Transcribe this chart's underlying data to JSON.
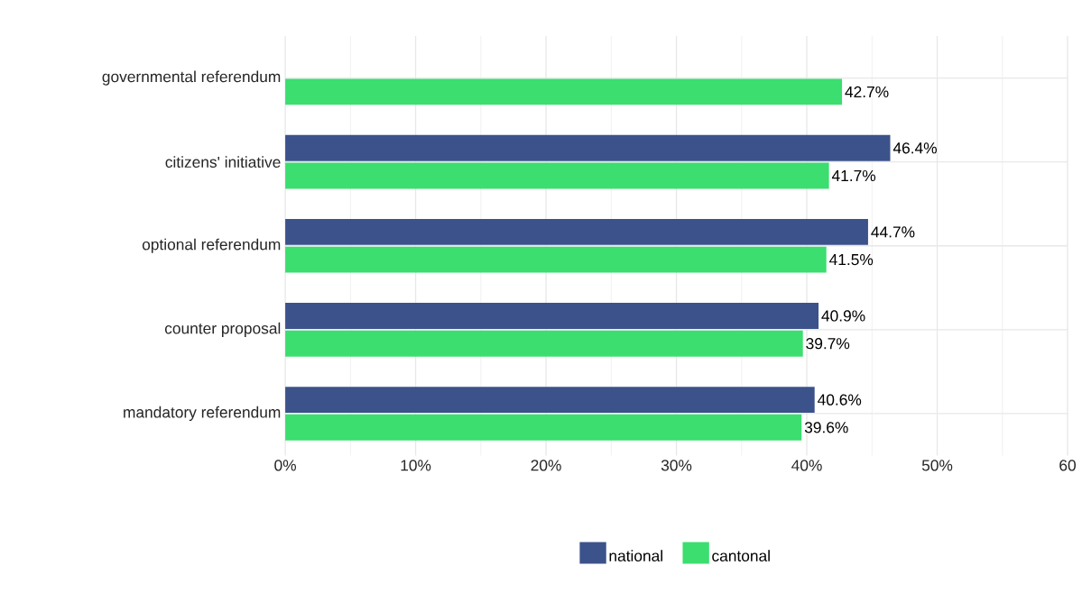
{
  "chart_data": {
    "type": "bar",
    "orientation": "horizontal",
    "categories": [
      "governmental referendum",
      "citizens' initiative",
      "optional referendum",
      "counter proposal",
      "mandatory referendum"
    ],
    "series": [
      {
        "name": "national",
        "color": "#3b528b",
        "values": [
          null,
          46.4,
          44.7,
          40.9,
          40.6
        ],
        "value_labels": [
          null,
          "46.4%",
          "44.7%",
          "40.9%",
          "40.6%"
        ]
      },
      {
        "name": "cantonal",
        "color": "#3bde6f",
        "values": [
          42.7,
          41.7,
          41.5,
          39.7,
          39.6
        ],
        "value_labels": [
          "42.7%",
          "41.7%",
          "41.5%",
          "39.7%",
          "39.6%"
        ]
      }
    ],
    "xlim": [
      0,
      60
    ],
    "xticks": [
      {
        "value": 0,
        "label": "0%"
      },
      {
        "value": 10,
        "label": "10%"
      },
      {
        "value": 20,
        "label": "20%"
      },
      {
        "value": 30,
        "label": "30%"
      },
      {
        "value": 40,
        "label": "40%"
      },
      {
        "value": 50,
        "label": "50%"
      },
      {
        "value": 60,
        "label": "60"
      }
    ],
    "grid": true,
    "legend": "bottom"
  }
}
